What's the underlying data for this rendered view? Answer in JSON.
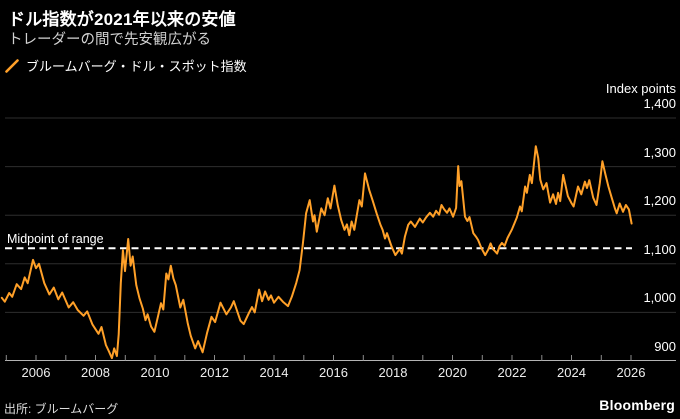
{
  "header": {
    "title": "ドル指数が2021年以来の安値",
    "subtitle": "トレーダーの間で先安観広がる"
  },
  "legend": {
    "series_label": "ブルームバーグ・ドル・スポット指数"
  },
  "footer": {
    "source": "出所: ブルームバーグ",
    "brand": "Bloomberg"
  },
  "colors": {
    "background": "#000000",
    "series_line": "#FFA028",
    "grid_line": "#2E2E2E",
    "axis_line": "#B3B3B3",
    "tick_mark": "#8C8C8C",
    "reference_line": "#FFFFFF",
    "text": "#FFFFFF"
  },
  "chart_data": {
    "type": "line",
    "unit_label": "Index points",
    "grid": "horizontal",
    "legend_position": "top-left",
    "y_axis": {
      "side": "right",
      "min": 900,
      "max": 1400,
      "tick_interval": 100,
      "tick_values": [
        900,
        1000,
        1100,
        1200,
        1300,
        1400
      ],
      "tick_labels": [
        "900",
        "1,000",
        "1,100",
        "1,200",
        "1,300",
        "1,400"
      ]
    },
    "x_axis": {
      "min_year": 2005,
      "max_year": 2026,
      "minor_tick_interval": 1,
      "label_years": [
        2006,
        2008,
        2010,
        2012,
        2014,
        2016,
        2018,
        2020,
        2022,
        2024,
        2026
      ],
      "labels": [
        "2006",
        "2008",
        "2010",
        "2012",
        "2014",
        "2016",
        "2018",
        "2020",
        "2022",
        "2024",
        "2026"
      ]
    },
    "reference_line": {
      "label": "Midpoint of range",
      "value": 1132,
      "style": "dashed"
    },
    "series": [
      {
        "name": "ブルームバーグ・ドル・スポット指数",
        "color": "#FFA028",
        "points": [
          [
            2004.85,
            1030
          ],
          [
            2004.95,
            1022
          ],
          [
            2005.1,
            1040
          ],
          [
            2005.2,
            1032
          ],
          [
            2005.35,
            1058
          ],
          [
            2005.5,
            1048
          ],
          [
            2005.62,
            1072
          ],
          [
            2005.72,
            1060
          ],
          [
            2005.9,
            1108
          ],
          [
            2006.0,
            1091
          ],
          [
            2006.1,
            1100
          ],
          [
            2006.28,
            1060
          ],
          [
            2006.45,
            1037
          ],
          [
            2006.6,
            1051
          ],
          [
            2006.75,
            1027
          ],
          [
            2006.88,
            1041
          ],
          [
            2007.1,
            1010
          ],
          [
            2007.25,
            1021
          ],
          [
            2007.4,
            1005
          ],
          [
            2007.6,
            993
          ],
          [
            2007.72,
            1002
          ],
          [
            2007.9,
            975
          ],
          [
            2008.1,
            956
          ],
          [
            2008.2,
            970
          ],
          [
            2008.35,
            933
          ],
          [
            2008.45,
            920
          ],
          [
            2008.55,
            906
          ],
          [
            2008.63,
            926
          ],
          [
            2008.72,
            910
          ],
          [
            2008.78,
            955
          ],
          [
            2008.85,
            1060
          ],
          [
            2008.92,
            1128
          ],
          [
            2008.99,
            1085
          ],
          [
            2009.1,
            1151
          ],
          [
            2009.18,
            1096
          ],
          [
            2009.25,
            1115
          ],
          [
            2009.37,
            1056
          ],
          [
            2009.48,
            1029
          ],
          [
            2009.59,
            1008
          ],
          [
            2009.68,
            984
          ],
          [
            2009.75,
            996
          ],
          [
            2009.87,
            971
          ],
          [
            2009.98,
            960
          ],
          [
            2010.1,
            992
          ],
          [
            2010.2,
            1019
          ],
          [
            2010.28,
            1006
          ],
          [
            2010.38,
            1080
          ],
          [
            2010.45,
            1068
          ],
          [
            2010.53,
            1096
          ],
          [
            2010.62,
            1070
          ],
          [
            2010.7,
            1056
          ],
          [
            2010.85,
            1010
          ],
          [
            2010.95,
            1026
          ],
          [
            2011.1,
            978
          ],
          [
            2011.2,
            952
          ],
          [
            2011.35,
            926
          ],
          [
            2011.45,
            941
          ],
          [
            2011.6,
            918
          ],
          [
            2011.75,
            958
          ],
          [
            2011.9,
            991
          ],
          [
            2012.02,
            980
          ],
          [
            2012.2,
            1020
          ],
          [
            2012.4,
            996
          ],
          [
            2012.55,
            1010
          ],
          [
            2012.65,
            1023
          ],
          [
            2012.87,
            983
          ],
          [
            2012.98,
            976
          ],
          [
            2013.15,
            998
          ],
          [
            2013.26,
            1011
          ],
          [
            2013.35,
            1000
          ],
          [
            2013.5,
            1047
          ],
          [
            2013.6,
            1023
          ],
          [
            2013.7,
            1043
          ],
          [
            2013.82,
            1026
          ],
          [
            2013.9,
            1035
          ],
          [
            2014.0,
            1020
          ],
          [
            2014.15,
            1032
          ],
          [
            2014.3,
            1022
          ],
          [
            2014.47,
            1013
          ],
          [
            2014.6,
            1032
          ],
          [
            2014.75,
            1061
          ],
          [
            2014.86,
            1087
          ],
          [
            2014.97,
            1142
          ],
          [
            2015.08,
            1204
          ],
          [
            2015.2,
            1231
          ],
          [
            2015.31,
            1187
          ],
          [
            2015.36,
            1200
          ],
          [
            2015.44,
            1166
          ],
          [
            2015.59,
            1214
          ],
          [
            2015.7,
            1200
          ],
          [
            2015.81,
            1235
          ],
          [
            2015.9,
            1214
          ],
          [
            2016.03,
            1261
          ],
          [
            2016.14,
            1221
          ],
          [
            2016.26,
            1190
          ],
          [
            2016.37,
            1170
          ],
          [
            2016.45,
            1181
          ],
          [
            2016.53,
            1159
          ],
          [
            2016.61,
            1187
          ],
          [
            2016.7,
            1170
          ],
          [
            2016.87,
            1231
          ],
          [
            2016.95,
            1218
          ],
          [
            2017.06,
            1286
          ],
          [
            2017.2,
            1252
          ],
          [
            2017.31,
            1231
          ],
          [
            2017.45,
            1204
          ],
          [
            2017.58,
            1180
          ],
          [
            2017.65,
            1170
          ],
          [
            2017.73,
            1152
          ],
          [
            2017.8,
            1163
          ],
          [
            2017.95,
            1136
          ],
          [
            2018.08,
            1118
          ],
          [
            2018.17,
            1126
          ],
          [
            2018.23,
            1130
          ],
          [
            2018.3,
            1121
          ],
          [
            2018.4,
            1156
          ],
          [
            2018.51,
            1180
          ],
          [
            2018.6,
            1187
          ],
          [
            2018.74,
            1176
          ],
          [
            2018.9,
            1193
          ],
          [
            2019.0,
            1185
          ],
          [
            2019.12,
            1196
          ],
          [
            2019.24,
            1205
          ],
          [
            2019.35,
            1197
          ],
          [
            2019.45,
            1209
          ],
          [
            2019.55,
            1201
          ],
          [
            2019.63,
            1221
          ],
          [
            2019.72,
            1212
          ],
          [
            2019.82,
            1205
          ],
          [
            2019.9,
            1214
          ],
          [
            2020.02,
            1197
          ],
          [
            2020.12,
            1215
          ],
          [
            2020.19,
            1301
          ],
          [
            2020.24,
            1260
          ],
          [
            2020.3,
            1270
          ],
          [
            2020.42,
            1197
          ],
          [
            2020.5,
            1188
          ],
          [
            2020.57,
            1196
          ],
          [
            2020.7,
            1163
          ],
          [
            2020.8,
            1155
          ],
          [
            2020.86,
            1149
          ],
          [
            2020.98,
            1131
          ],
          [
            2021.1,
            1118
          ],
          [
            2021.2,
            1129
          ],
          [
            2021.28,
            1142
          ],
          [
            2021.36,
            1130
          ],
          [
            2021.43,
            1126
          ],
          [
            2021.5,
            1121
          ],
          [
            2021.58,
            1136
          ],
          [
            2021.66,
            1143
          ],
          [
            2021.75,
            1137
          ],
          [
            2021.85,
            1153
          ],
          [
            2022.0,
            1171
          ],
          [
            2022.1,
            1186
          ],
          [
            2022.16,
            1195
          ],
          [
            2022.27,
            1218
          ],
          [
            2022.33,
            1208
          ],
          [
            2022.44,
            1259
          ],
          [
            2022.5,
            1246
          ],
          [
            2022.6,
            1283
          ],
          [
            2022.67,
            1266
          ],
          [
            2022.8,
            1342
          ],
          [
            2022.88,
            1318
          ],
          [
            2022.95,
            1273
          ],
          [
            2023.05,
            1253
          ],
          [
            2023.16,
            1266
          ],
          [
            2023.28,
            1226
          ],
          [
            2023.38,
            1243
          ],
          [
            2023.48,
            1223
          ],
          [
            2023.55,
            1246
          ],
          [
            2023.62,
            1229
          ],
          [
            2023.72,
            1283
          ],
          [
            2023.88,
            1239
          ],
          [
            2024.0,
            1225
          ],
          [
            2024.07,
            1218
          ],
          [
            2024.22,
            1259
          ],
          [
            2024.33,
            1243
          ],
          [
            2024.45,
            1269
          ],
          [
            2024.52,
            1256
          ],
          [
            2024.6,
            1272
          ],
          [
            2024.73,
            1236
          ],
          [
            2024.84,
            1221
          ],
          [
            2024.95,
            1266
          ],
          [
            2025.04,
            1311
          ],
          [
            2025.14,
            1284
          ],
          [
            2025.24,
            1259
          ],
          [
            2025.35,
            1236
          ],
          [
            2025.46,
            1214
          ],
          [
            2025.52,
            1204
          ],
          [
            2025.62,
            1224
          ],
          [
            2025.73,
            1207
          ],
          [
            2025.83,
            1221
          ],
          [
            2025.93,
            1212
          ],
          [
            2026.02,
            1183
          ]
        ]
      }
    ]
  }
}
